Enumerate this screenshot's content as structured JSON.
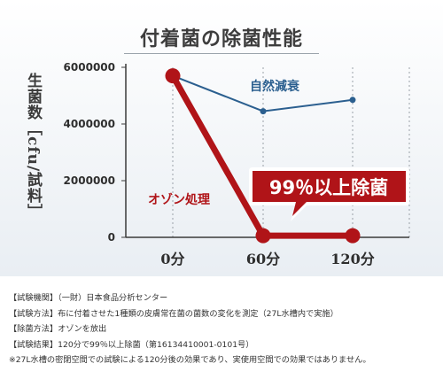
{
  "chart_data": {
    "type": "line",
    "title": "付着菌の除菌性能",
    "ylabel": "生菌数［cfu/試料］",
    "xlabel": "",
    "categories": [
      "0分",
      "60分",
      "120分"
    ],
    "ylim": [
      0,
      6000000
    ],
    "yticks": [
      0,
      2000000,
      4000000,
      6000000
    ],
    "ytick_labels": [
      "0",
      "2000000",
      "4000000",
      "6000000"
    ],
    "grid": "vertical-dotted",
    "series": [
      {
        "name": "自然減衰",
        "values": [
          5700000,
          4450000,
          4850000
        ],
        "color": "#2b5f8f"
      },
      {
        "name": "オゾン処理",
        "values": [
          5700000,
          57000,
          57000
        ],
        "color": "#b01418"
      }
    ],
    "callout": "99％以上除菌"
  },
  "notes": [
    "【試験機関】（一財）日本食品分析センター",
    "【試験方法】布に付着させた1種類の皮膚常在菌の菌数の変化を測定（27L水槽内で実施）",
    "【除菌方法】オゾンを放出",
    "【試験結果】120分で99％以上除菌（第16134410001-0101号）",
    "※27L水槽の密閉空間での試験による120分後の効果であり、実使用空間での効果ではありません。"
  ]
}
